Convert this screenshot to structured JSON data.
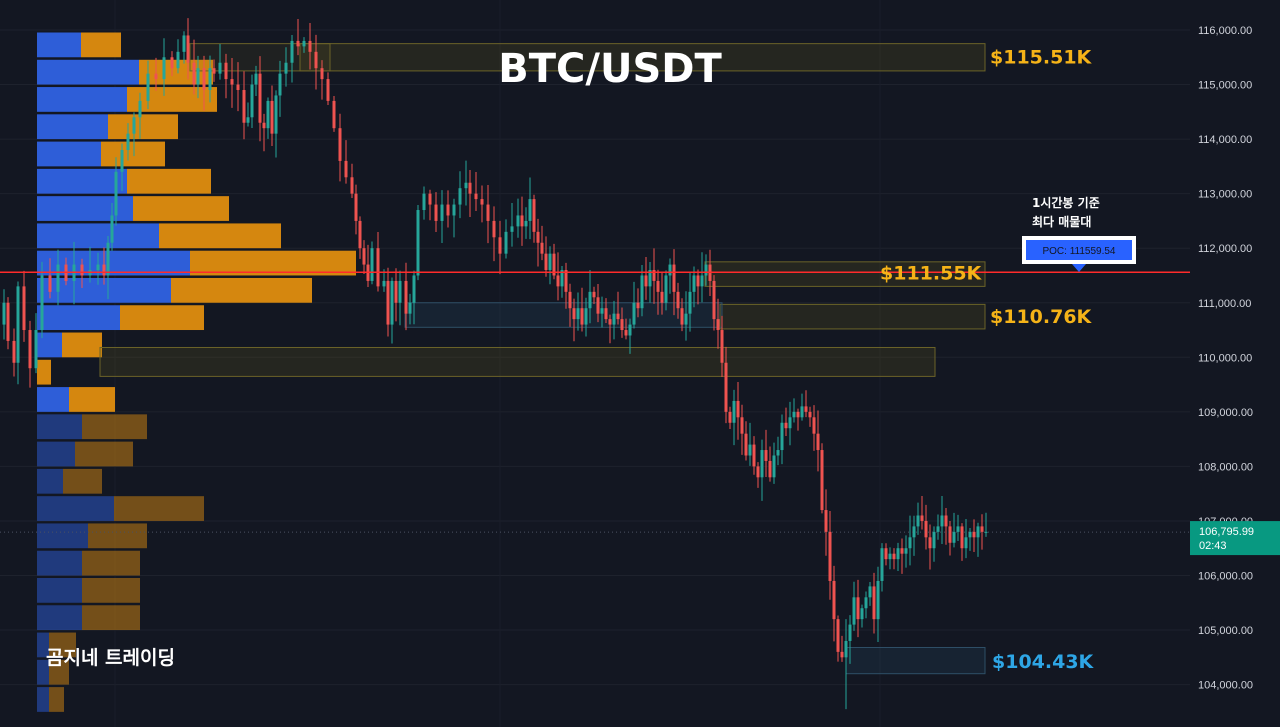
{
  "chart_data": {
    "type": "candlestick",
    "title": "BTC/USDT",
    "y_ticks": [
      "116,000.00",
      "115,000.00",
      "114,000.00",
      "113,000.00",
      "112,000.00",
      "111,000.00",
      "110,000.00",
      "109,000.00",
      "108,000.00",
      "107,000.00",
      "106,000.00",
      "105,000.00",
      "104,000.00"
    ],
    "y_range": [
      103700,
      116450
    ],
    "current_price": {
      "value": 106795.99,
      "label": "106,795.99",
      "countdown": "02:43",
      "color": "#089981"
    },
    "poc": {
      "price": 111559.54,
      "label": "POC: 111559.54",
      "color": "#ff2b2b"
    },
    "poc_note": [
      "1시간봉 기준",
      "최다 매물대"
    ],
    "level_labels": [
      {
        "text": "$115.51K",
        "price": 115510,
        "color": "#f5b318"
      },
      {
        "text": "$111.55K",
        "price": 111550,
        "color": "#f5b318"
      },
      {
        "text": "$110.76K",
        "price": 110760,
        "color": "#f5b318"
      },
      {
        "text": "$104.43K",
        "price": 104430,
        "color": "#2ea6e6"
      }
    ],
    "zones": [
      {
        "kind": "supply",
        "y_from": 115250,
        "y_to": 115750
      },
      {
        "kind": "supply",
        "y_from": 111300,
        "y_to": 111750
      },
      {
        "kind": "supply",
        "y_from": 110520,
        "y_to": 110970
      },
      {
        "kind": "supply",
        "y_from": 109650,
        "y_to": 110180
      },
      {
        "kind": "demand",
        "y_from": 110550,
        "y_to": 111000
      },
      {
        "kind": "demand",
        "y_from": 104200,
        "y_to": 104680
      }
    ],
    "volume_profile": [
      {
        "price": 115750,
        "buy": 44,
        "sell": 40
      },
      {
        "price": 115250,
        "buy": 102,
        "sell": 74
      },
      {
        "price": 114750,
        "buy": 90,
        "sell": 90
      },
      {
        "price": 114250,
        "buy": 71,
        "sell": 70
      },
      {
        "price": 113750,
        "buy": 64,
        "sell": 64
      },
      {
        "price": 113250,
        "buy": 90,
        "sell": 84
      },
      {
        "price": 112750,
        "buy": 96,
        "sell": 96
      },
      {
        "price": 112250,
        "buy": 122,
        "sell": 122
      },
      {
        "price": 111750,
        "buy": 153,
        "sell": 166
      },
      {
        "price": 111250,
        "buy": 134,
        "sell": 141
      },
      {
        "price": 110750,
        "buy": 83,
        "sell": 84
      },
      {
        "price": 110250,
        "buy": 25,
        "sell": 40
      },
      {
        "price": 109750,
        "buy": 0,
        "sell": 14
      },
      {
        "price": 109250,
        "buy": 32,
        "sell": 46
      },
      {
        "price": 108750,
        "buy": 45,
        "sell": 65
      },
      {
        "price": 108250,
        "buy": 38,
        "sell": 58
      },
      {
        "price": 107750,
        "buy": 26,
        "sell": 39
      },
      {
        "price": 107250,
        "buy": 77,
        "sell": 90
      },
      {
        "price": 106750,
        "buy": 51,
        "sell": 59
      },
      {
        "price": 106250,
        "buy": 45,
        "sell": 58
      },
      {
        "price": 105750,
        "buy": 45,
        "sell": 58
      },
      {
        "price": 105250,
        "buy": 45,
        "sell": 58
      },
      {
        "price": 104750,
        "buy": 12,
        "sell": 27
      },
      {
        "price": 104250,
        "buy": 12,
        "sell": 20
      },
      {
        "price": 103750,
        "buy": 12,
        "sell": 15
      }
    ],
    "close_path": [
      [
        0,
        110600
      ],
      [
        4,
        111000
      ],
      [
        8,
        110300
      ],
      [
        14,
        109900
      ],
      [
        18,
        111300
      ],
      [
        24,
        110500
      ],
      [
        30,
        109800
      ],
      [
        36,
        110500
      ],
      [
        42,
        111500
      ],
      [
        50,
        111200
      ],
      [
        58,
        111700
      ],
      [
        66,
        111400
      ],
      [
        74,
        111700
      ],
      [
        82,
        111500
      ],
      [
        90,
        111600
      ],
      [
        98,
        111700
      ],
      [
        104,
        111500
      ],
      [
        108,
        112100
      ],
      [
        112,
        112600
      ],
      [
        116,
        113400
      ],
      [
        122,
        113800
      ],
      [
        128,
        114100
      ],
      [
        134,
        114400
      ],
      [
        140,
        114700
      ],
      [
        148,
        115200
      ],
      [
        156,
        115100
      ],
      [
        164,
        115500
      ],
      [
        172,
        115300
      ],
      [
        178,
        115600
      ],
      [
        184,
        115900
      ],
      [
        188,
        115400
      ],
      [
        194,
        115000
      ],
      [
        198,
        115300
      ],
      [
        204,
        114900
      ],
      [
        210,
        115300
      ],
      [
        214,
        115200
      ],
      [
        220,
        115400
      ],
      [
        226,
        115100
      ],
      [
        232,
        115000
      ],
      [
        238,
        114900
      ],
      [
        244,
        114300
      ],
      [
        248,
        114400
      ],
      [
        252,
        115000
      ],
      [
        256,
        115200
      ],
      [
        260,
        114300
      ],
      [
        264,
        114200
      ],
      [
        268,
        114700
      ],
      [
        272,
        114100
      ],
      [
        276,
        114800
      ],
      [
        280,
        115200
      ],
      [
        286,
        115400
      ],
      [
        292,
        115800
      ],
      [
        298,
        115700
      ],
      [
        304,
        115800
      ],
      [
        310,
        115600
      ],
      [
        316,
        115300
      ],
      [
        322,
        115100
      ],
      [
        328,
        114700
      ],
      [
        334,
        114200
      ],
      [
        340,
        113600
      ],
      [
        346,
        113300
      ],
      [
        352,
        113000
      ],
      [
        356,
        112500
      ],
      [
        360,
        112000
      ],
      [
        364,
        111700
      ],
      [
        368,
        111400
      ],
      [
        372,
        112000
      ],
      [
        378,
        111300
      ],
      [
        384,
        111400
      ],
      [
        388,
        110600
      ],
      [
        392,
        111400
      ],
      [
        396,
        111000
      ],
      [
        400,
        111400
      ],
      [
        406,
        110800
      ],
      [
        410,
        111000
      ],
      [
        414,
        111500
      ],
      [
        418,
        112700
      ],
      [
        424,
        113000
      ],
      [
        430,
        112800
      ],
      [
        436,
        112500
      ],
      [
        442,
        112800
      ],
      [
        448,
        112600
      ],
      [
        454,
        112800
      ],
      [
        460,
        113100
      ],
      [
        466,
        113200
      ],
      [
        470,
        113000
      ],
      [
        476,
        112900
      ],
      [
        482,
        112800
      ],
      [
        488,
        112500
      ],
      [
        494,
        112200
      ],
      [
        500,
        111900
      ],
      [
        506,
        112300
      ],
      [
        512,
        112400
      ],
      [
        518,
        112600
      ],
      [
        522,
        112400
      ],
      [
        526,
        112500
      ],
      [
        530,
        112900
      ],
      [
        534,
        112300
      ],
      [
        538,
        112100
      ],
      [
        542,
        111900
      ],
      [
        546,
        111600
      ],
      [
        550,
        111900
      ],
      [
        554,
        111500
      ],
      [
        558,
        111300
      ],
      [
        562,
        111600
      ],
      [
        566,
        111200
      ],
      [
        570,
        110900
      ],
      [
        574,
        110700
      ],
      [
        578,
        110900
      ],
      [
        582,
        110600
      ],
      [
        586,
        110900
      ],
      [
        590,
        111200
      ],
      [
        594,
        111100
      ],
      [
        598,
        110800
      ],
      [
        602,
        110900
      ],
      [
        606,
        110700
      ],
      [
        610,
        110600
      ],
      [
        614,
        110800
      ],
      [
        618,
        110700
      ],
      [
        622,
        110500
      ],
      [
        626,
        110400
      ],
      [
        630,
        110600
      ],
      [
        634,
        111000
      ],
      [
        638,
        110900
      ],
      [
        642,
        111500
      ],
      [
        646,
        111300
      ],
      [
        650,
        111600
      ],
      [
        654,
        111400
      ],
      [
        658,
        111200
      ],
      [
        662,
        111000
      ],
      [
        666,
        111500
      ],
      [
        670,
        111700
      ],
      [
        674,
        111200
      ],
      [
        678,
        110900
      ],
      [
        682,
        110600
      ],
      [
        686,
        110800
      ],
      [
        690,
        111200
      ],
      [
        694,
        111500
      ],
      [
        698,
        111300
      ],
      [
        702,
        111500
      ],
      [
        706,
        111700
      ],
      [
        710,
        111400
      ],
      [
        714,
        110700
      ],
      [
        718,
        110500
      ],
      [
        722,
        109900
      ],
      [
        726,
        109000
      ],
      [
        730,
        108800
      ],
      [
        734,
        109200
      ],
      [
        738,
        108900
      ],
      [
        742,
        108600
      ],
      [
        746,
        108200
      ],
      [
        750,
        108400
      ],
      [
        754,
        108000
      ],
      [
        758,
        107800
      ],
      [
        762,
        108300
      ],
      [
        766,
        108100
      ],
      [
        770,
        107800
      ],
      [
        774,
        108200
      ],
      [
        778,
        108300
      ],
      [
        782,
        108800
      ],
      [
        786,
        108700
      ],
      [
        790,
        108900
      ],
      [
        794,
        109000
      ],
      [
        798,
        108900
      ],
      [
        802,
        109100
      ],
      [
        806,
        109000
      ],
      [
        810,
        108900
      ],
      [
        814,
        108600
      ],
      [
        818,
        108300
      ],
      [
        822,
        107200
      ],
      [
        826,
        106800
      ],
      [
        830,
        105900
      ],
      [
        834,
        105200
      ],
      [
        838,
        104600
      ],
      [
        842,
        104500
      ],
      [
        846,
        104800
      ],
      [
        850,
        105100
      ],
      [
        854,
        105600
      ],
      [
        858,
        105200
      ],
      [
        862,
        105400
      ],
      [
        866,
        105600
      ],
      [
        870,
        105800
      ],
      [
        874,
        105200
      ],
      [
        878,
        105900
      ],
      [
        882,
        106500
      ],
      [
        886,
        106300
      ],
      [
        890,
        106400
      ],
      [
        894,
        106300
      ],
      [
        898,
        106500
      ],
      [
        902,
        106400
      ],
      [
        906,
        106500
      ],
      [
        910,
        106700
      ],
      [
        914,
        106900
      ],
      [
        918,
        107100
      ],
      [
        922,
        107000
      ],
      [
        926,
        106700
      ],
      [
        930,
        106500
      ],
      [
        934,
        106800
      ],
      [
        938,
        106900
      ],
      [
        942,
        107100
      ],
      [
        946,
        106900
      ],
      [
        950,
        106600
      ],
      [
        954,
        106800
      ],
      [
        958,
        106900
      ],
      [
        962,
        106500
      ],
      [
        966,
        106700
      ],
      [
        970,
        106800
      ],
      [
        974,
        106700
      ],
      [
        978,
        106900
      ],
      [
        982,
        106800
      ],
      [
        986,
        106800
      ]
    ]
  },
  "branding": {
    "watermark": "곰지네 트레이딩"
  }
}
